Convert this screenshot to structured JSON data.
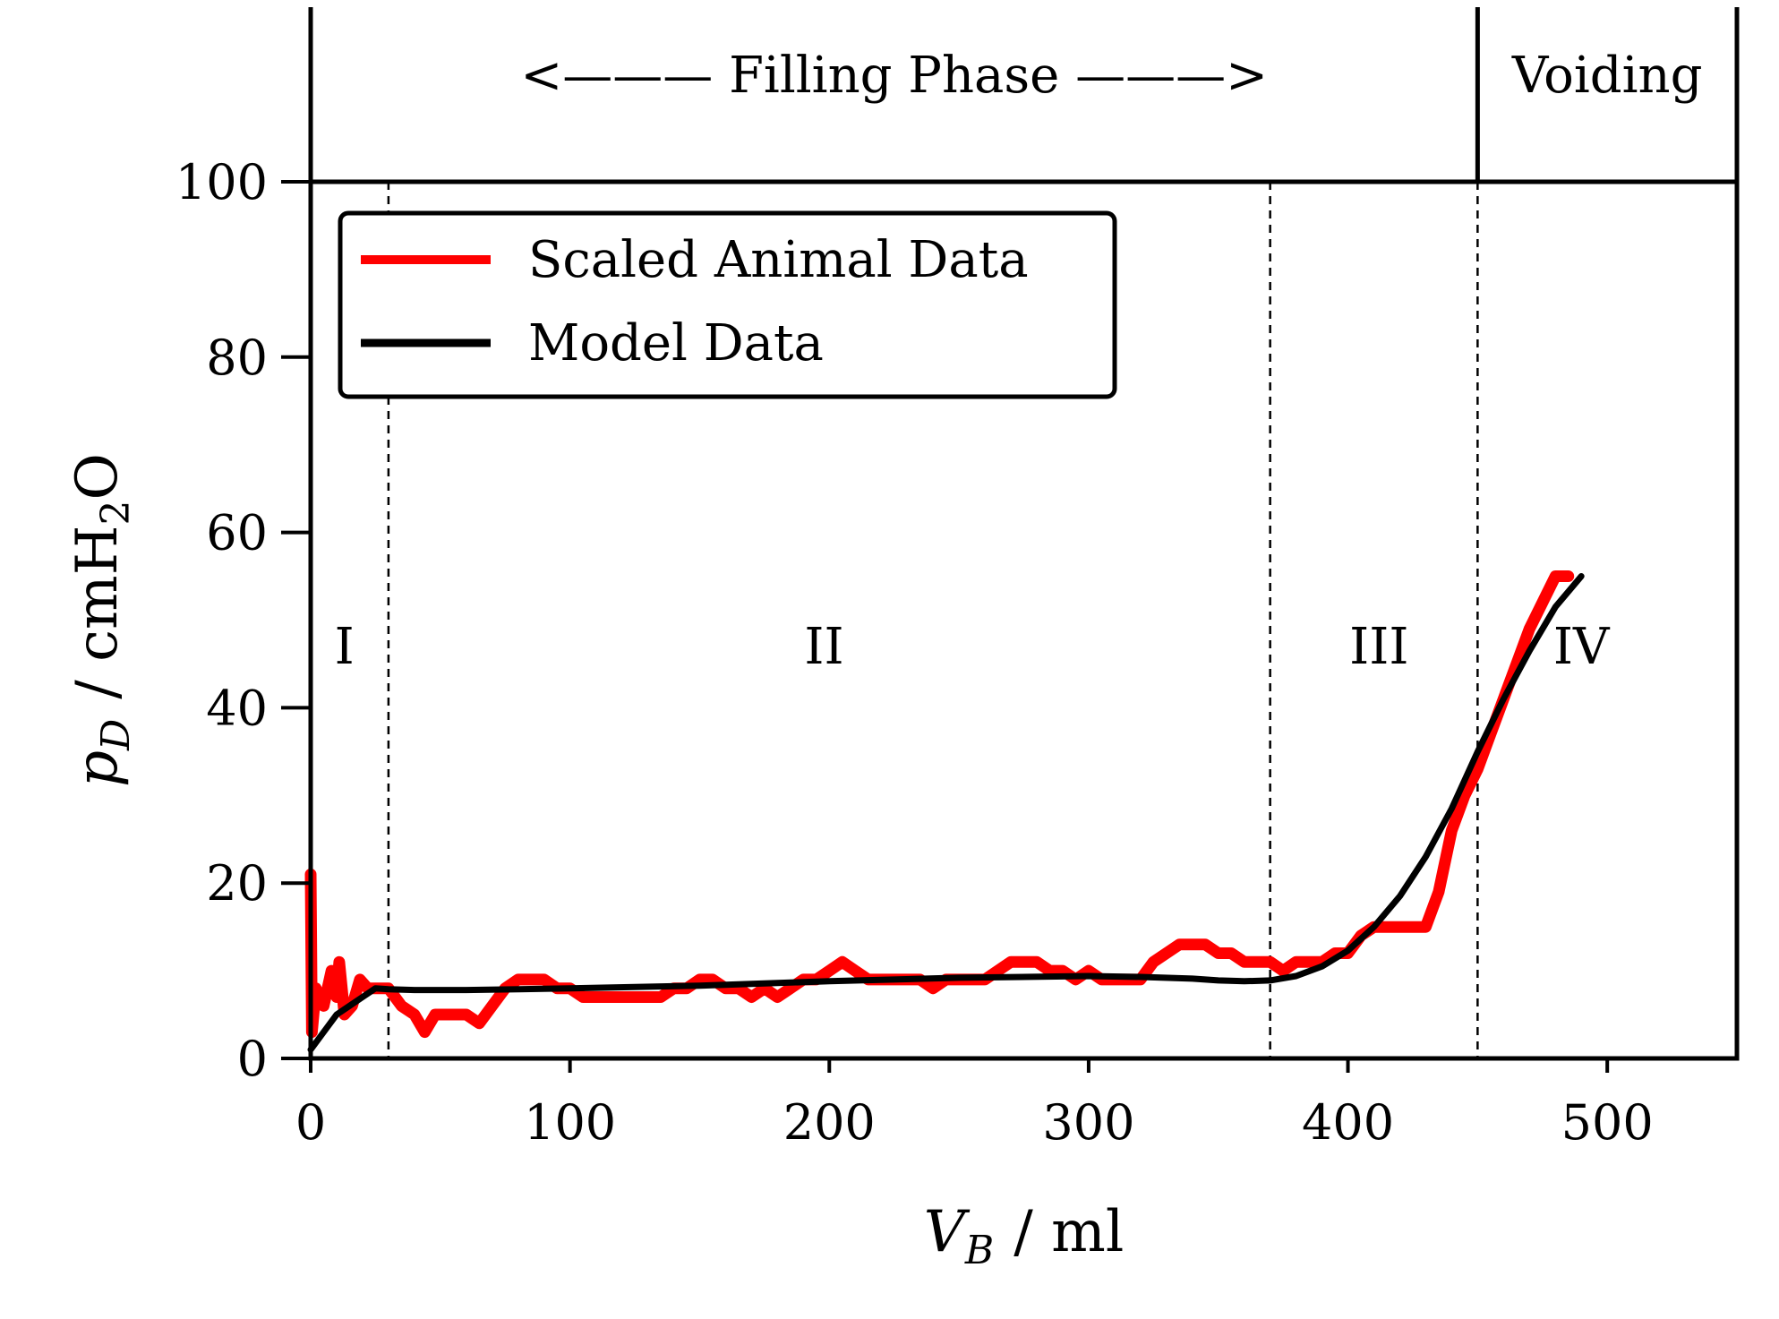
{
  "chart_data": {
    "type": "line",
    "xlabel_var": "V",
    "xlabel_sub": "B",
    "xlabel_unit": "/ ml",
    "ylabel_var": "p",
    "ylabel_sub": "D",
    "ylabel_unit_pre": "/ cmH",
    "ylabel_unit_sub": "2",
    "ylabel_unit_post": "O",
    "xlim": [
      0,
      550
    ],
    "ylim": [
      0,
      100
    ],
    "x_ticks": [
      0,
      100,
      200,
      300,
      400,
      500
    ],
    "y_ticks": [
      0,
      20,
      40,
      60,
      80,
      100
    ],
    "phase_labels": {
      "filling": "<——— Filling Phase ———>",
      "voiding": "Voiding"
    },
    "phase_boundary_x": 450,
    "region_boundaries_x": [
      30,
      370,
      450
    ],
    "regions": [
      {
        "label": "I",
        "x": 13,
        "y": 47
      },
      {
        "label": "II",
        "x": 198,
        "y": 47
      },
      {
        "label": "III",
        "x": 412,
        "y": 47
      },
      {
        "label": "IV",
        "x": 490,
        "y": 47
      }
    ],
    "legend_position": "upper-left",
    "series": [
      {
        "name": "Scaled Animal Data",
        "color": "#ff0000",
        "points": [
          [
            0,
            21
          ],
          [
            0.5,
            3
          ],
          [
            2,
            8
          ],
          [
            5,
            6
          ],
          [
            8,
            10
          ],
          [
            10,
            7
          ],
          [
            11,
            11
          ],
          [
            13,
            5
          ],
          [
            16,
            6
          ],
          [
            19,
            9
          ],
          [
            22,
            8
          ],
          [
            25,
            8
          ],
          [
            30,
            8
          ],
          [
            35,
            6
          ],
          [
            40,
            5
          ],
          [
            44,
            3
          ],
          [
            48,
            5
          ],
          [
            55,
            5
          ],
          [
            60,
            5
          ],
          [
            65,
            4
          ],
          [
            70,
            6
          ],
          [
            75,
            8
          ],
          [
            80,
            9
          ],
          [
            85,
            9
          ],
          [
            90,
            9
          ],
          [
            95,
            8
          ],
          [
            100,
            8
          ],
          [
            105,
            7
          ],
          [
            110,
            7
          ],
          [
            115,
            7
          ],
          [
            120,
            7
          ],
          [
            125,
            7
          ],
          [
            130,
            7
          ],
          [
            135,
            7
          ],
          [
            140,
            8
          ],
          [
            145,
            8
          ],
          [
            150,
            9
          ],
          [
            155,
            9
          ],
          [
            160,
            8
          ],
          [
            165,
            8
          ],
          [
            170,
            7
          ],
          [
            175,
            8
          ],
          [
            180,
            7
          ],
          [
            185,
            8
          ],
          [
            190,
            9
          ],
          [
            195,
            9
          ],
          [
            200,
            10
          ],
          [
            205,
            11
          ],
          [
            210,
            10
          ],
          [
            215,
            9
          ],
          [
            220,
            9
          ],
          [
            225,
            9
          ],
          [
            230,
            9
          ],
          [
            235,
            9
          ],
          [
            240,
            8
          ],
          [
            245,
            9
          ],
          [
            250,
            9
          ],
          [
            255,
            9
          ],
          [
            260,
            9
          ],
          [
            265,
            10
          ],
          [
            270,
            11
          ],
          [
            275,
            11
          ],
          [
            280,
            11
          ],
          [
            285,
            10
          ],
          [
            290,
            10
          ],
          [
            295,
            9
          ],
          [
            300,
            10
          ],
          [
            305,
            9
          ],
          [
            310,
            9
          ],
          [
            315,
            9
          ],
          [
            320,
            9
          ],
          [
            325,
            11
          ],
          [
            330,
            12
          ],
          [
            335,
            13
          ],
          [
            340,
            13
          ],
          [
            345,
            13
          ],
          [
            350,
            12
          ],
          [
            355,
            12
          ],
          [
            360,
            11
          ],
          [
            365,
            11
          ],
          [
            370,
            11
          ],
          [
            375,
            10
          ],
          [
            380,
            11
          ],
          [
            385,
            11
          ],
          [
            390,
            11
          ],
          [
            395,
            12
          ],
          [
            400,
            12
          ],
          [
            405,
            14
          ],
          [
            410,
            15
          ],
          [
            415,
            15
          ],
          [
            420,
            15
          ],
          [
            425,
            15
          ],
          [
            430,
            15
          ],
          [
            435,
            19
          ],
          [
            440,
            26
          ],
          [
            445,
            30
          ],
          [
            450,
            33
          ],
          [
            455,
            37
          ],
          [
            460,
            41
          ],
          [
            465,
            45
          ],
          [
            470,
            49
          ],
          [
            475,
            52
          ],
          [
            480,
            55
          ],
          [
            485,
            55
          ]
        ]
      },
      {
        "name": "Model Data",
        "color": "#000000",
        "points": [
          [
            0,
            1
          ],
          [
            5,
            3
          ],
          [
            10,
            5
          ],
          [
            15,
            6
          ],
          [
            20,
            7
          ],
          [
            25,
            8
          ],
          [
            30,
            7.9
          ],
          [
            40,
            7.8
          ],
          [
            50,
            7.8
          ],
          [
            60,
            7.8
          ],
          [
            80,
            7.9
          ],
          [
            100,
            8
          ],
          [
            150,
            8.3
          ],
          [
            200,
            8.8
          ],
          [
            250,
            9.2
          ],
          [
            300,
            9.4
          ],
          [
            320,
            9.3
          ],
          [
            340,
            9.1
          ],
          [
            350,
            8.9
          ],
          [
            360,
            8.8
          ],
          [
            370,
            8.9
          ],
          [
            380,
            9.4
          ],
          [
            390,
            10.5
          ],
          [
            400,
            12.3
          ],
          [
            410,
            15
          ],
          [
            420,
            18.5
          ],
          [
            430,
            23
          ],
          [
            440,
            28.5
          ],
          [
            450,
            35
          ],
          [
            460,
            41
          ],
          [
            470,
            46.5
          ],
          [
            480,
            51.5
          ],
          [
            490,
            55
          ]
        ]
      }
    ]
  }
}
